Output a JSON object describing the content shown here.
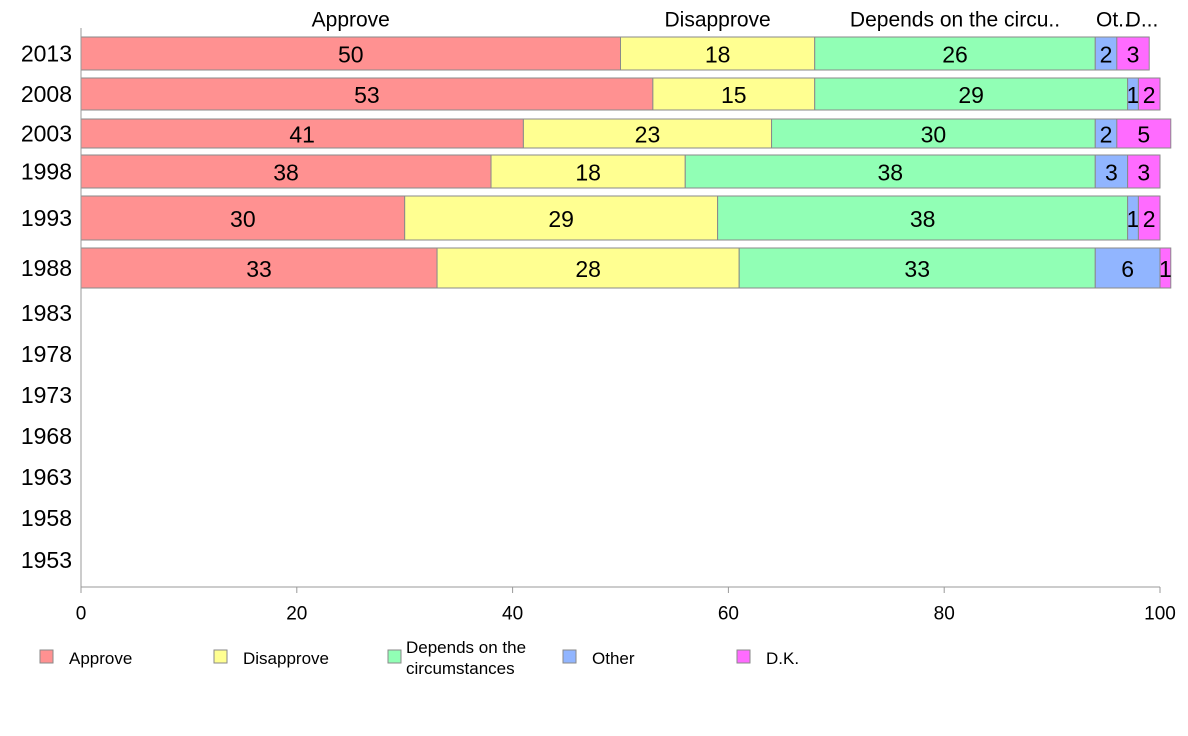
{
  "chart_data": {
    "type": "bar",
    "orientation": "horizontal",
    "stacked": true,
    "categories": [
      "2013",
      "2008",
      "2003",
      "1998",
      "1993",
      "1988",
      "1983",
      "1978",
      "1973",
      "1968",
      "1963",
      "1958",
      "1953"
    ],
    "series": [
      {
        "name": "Approve",
        "color": "#ff9191",
        "values": [
          50,
          53,
          41,
          38,
          30,
          33,
          null,
          null,
          null,
          null,
          null,
          null,
          null
        ]
      },
      {
        "name": "Disapprove",
        "color": "#ffff91",
        "values": [
          18,
          15,
          23,
          18,
          29,
          28,
          null,
          null,
          null,
          null,
          null,
          null,
          null
        ]
      },
      {
        "name": "Depends on the circumstances",
        "color": "#91ffb5",
        "values": [
          26,
          29,
          30,
          38,
          38,
          33,
          null,
          null,
          null,
          null,
          null,
          null,
          null
        ]
      },
      {
        "name": "Other",
        "color": "#91b5ff",
        "values": [
          2,
          1,
          2,
          3,
          1,
          6,
          null,
          null,
          null,
          null,
          null,
          null,
          null
        ]
      },
      {
        "name": "D.K.",
        "color": "#ff6bff",
        "values": [
          3,
          2,
          5,
          3,
          2,
          1,
          null,
          null,
          null,
          null,
          null,
          null,
          null
        ]
      }
    ],
    "column_headers": [
      "Approve",
      "Disapprove",
      "Depends on the circu..",
      "Ot..",
      "D..."
    ],
    "legend_labels": [
      "Approve",
      "Disapprove",
      "Depends on the\ncircumstances",
      "Other",
      "D.K."
    ],
    "xticks": [
      "0",
      "20",
      "40",
      "60",
      "80",
      "100"
    ],
    "xlim": [
      0,
      100
    ],
    "legend_position": "bottom",
    "grid": false
  }
}
